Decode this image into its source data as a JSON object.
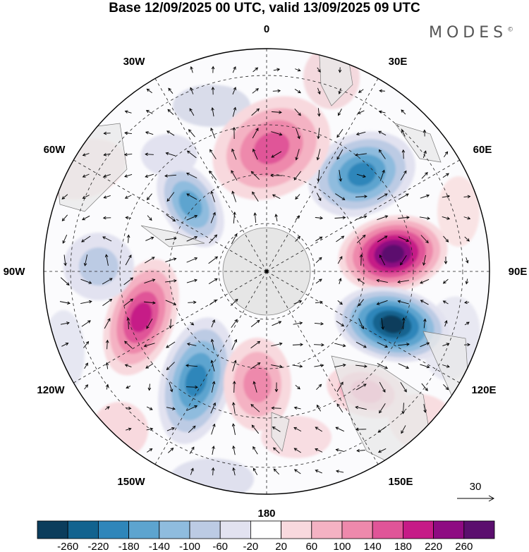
{
  "title": "Base 12/09/2025 00 UTC, valid 13/09/2025 09 UTC",
  "brand": "MODES",
  "brand_mark": "©",
  "reference_vector": {
    "label": "30"
  },
  "chart_data": {
    "type": "heatmap",
    "projection": "south polar stereographic",
    "title": "Base 12/09/2025 00 UTC, valid 13/09/2025 09 UTC",
    "longitude_labels": [
      "0",
      "30E",
      "60E",
      "90E",
      "120E",
      "150E",
      "180",
      "150W",
      "120W",
      "90W",
      "60W",
      "30W"
    ],
    "colorbar": {
      "ticks": [
        "-260",
        "-220",
        "-180",
        "-140",
        "-100",
        "-60",
        "-20",
        "20",
        "60",
        "100",
        "140",
        "180",
        "220",
        "260"
      ],
      "colors": [
        "#0b3d5c",
        "#12638f",
        "#2f86ba",
        "#5da4cf",
        "#8fbcde",
        "#bccbe4",
        "#e2e2f0",
        "#ffffff",
        "#f8d9de",
        "#f4b2c3",
        "#ee89ac",
        "#e05598",
        "#c61b87",
        "#8e0b82",
        "#5b0f6e"
      ]
    },
    "anomaly_centers": [
      {
        "name": "east-90E-positive",
        "value": 260
      },
      {
        "name": "east-105E-negative",
        "value": -260
      },
      {
        "name": "east-45E-negative",
        "value": -180
      },
      {
        "name": "north-10E-positive",
        "value": 140
      },
      {
        "name": "west-60W-negative",
        "value": -160
      },
      {
        "name": "west-100W-positive",
        "value": 200
      },
      {
        "name": "south-140W-negative",
        "value": -180
      },
      {
        "name": "south-175E-positive",
        "value": 120
      },
      {
        "name": "west-80W-negative",
        "value": -80
      },
      {
        "name": "south-130E-positive",
        "value": 100
      }
    ],
    "reference_vector_value": 30
  }
}
